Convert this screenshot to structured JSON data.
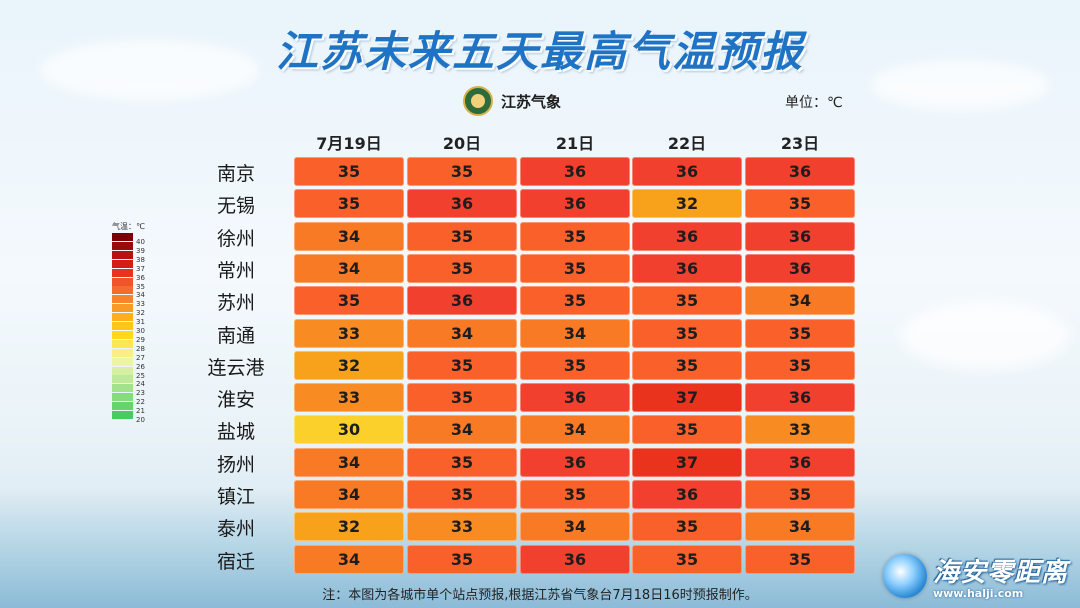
{
  "title": "江苏未来五天最高气温预报",
  "org_name": "江苏气象",
  "unit_label": "单位：℃",
  "footnote": "注：本图为各城市单个站点预报,根据江苏省气象台7月18日16时预报制作。",
  "watermark": {
    "name": "海安零距离",
    "url": "www.halji.com"
  },
  "legend": {
    "title": "气温：℃",
    "levels": [
      {
        "label": "40",
        "color": "#7d0006"
      },
      {
        "label": "39",
        "color": "#990a0c"
      },
      {
        "label": "38",
        "color": "#b61212"
      },
      {
        "label": "37",
        "color": "#d21c17"
      },
      {
        "label": "36",
        "color": "#e8331f"
      },
      {
        "label": "35",
        "color": "#f1532a"
      },
      {
        "label": "34",
        "color": "#f46c2c"
      },
      {
        "label": "33",
        "color": "#f6842c"
      },
      {
        "label": "32",
        "color": "#f89a26"
      },
      {
        "label": "31",
        "color": "#fbb01e"
      },
      {
        "label": "30",
        "color": "#fdc516"
      },
      {
        "label": "29",
        "color": "#fed820"
      },
      {
        "label": "28",
        "color": "#fde655"
      },
      {
        "label": "27",
        "color": "#fbee86"
      },
      {
        "label": "26",
        "color": "#eef3a6"
      },
      {
        "label": "25",
        "color": "#d6efa2"
      },
      {
        "label": "24",
        "color": "#bde998"
      },
      {
        "label": "23",
        "color": "#a3e28c"
      },
      {
        "label": "22",
        "color": "#86db7e"
      },
      {
        "label": "21",
        "color": "#67d36f"
      },
      {
        "label": "20",
        "color": "#47cb62"
      }
    ]
  },
  "chart_data": {
    "type": "heatmap",
    "title": "江苏未来五天最高气温预报",
    "unit": "℃",
    "columns": [
      "7月19日",
      "20日",
      "21日",
      "22日",
      "23日"
    ],
    "rows": [
      "南京",
      "无锡",
      "徐州",
      "常州",
      "苏州",
      "南通",
      "连云港",
      "淮安",
      "盐城",
      "扬州",
      "镇江",
      "泰州",
      "宿迁"
    ],
    "values": [
      [
        35,
        35,
        36,
        36,
        36
      ],
      [
        35,
        36,
        36,
        32,
        35
      ],
      [
        34,
        35,
        35,
        36,
        36
      ],
      [
        34,
        35,
        35,
        36,
        36
      ],
      [
        35,
        36,
        35,
        35,
        34
      ],
      [
        33,
        34,
        34,
        35,
        35
      ],
      [
        32,
        35,
        35,
        35,
        35
      ],
      [
        33,
        35,
        36,
        37,
        36
      ],
      [
        30,
        34,
        34,
        35,
        33
      ],
      [
        34,
        35,
        36,
        37,
        36
      ],
      [
        34,
        35,
        35,
        36,
        35
      ],
      [
        32,
        33,
        34,
        35,
        34
      ],
      [
        34,
        35,
        36,
        35,
        35
      ]
    ],
    "colors": {
      "30": "#fbd02a",
      "32": "#f7a21a",
      "33": "#f88c22",
      "34": "#f97a24",
      "35": "#f9602a",
      "36": "#f1412e",
      "37": "#e9331c"
    }
  }
}
